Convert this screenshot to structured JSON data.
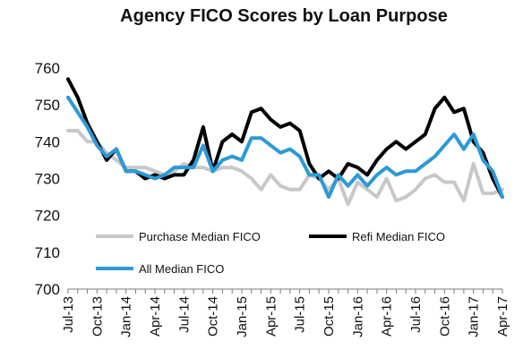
{
  "chart_data": {
    "type": "line",
    "title": "Agency FICO Scores by Loan Purpose",
    "xlabel": "",
    "ylabel": "",
    "ylim": [
      700,
      760
    ],
    "yticks": [
      700,
      710,
      720,
      730,
      740,
      750,
      760
    ],
    "grid": false,
    "legend": "inside-bottom-left",
    "x": [
      "Jul-13",
      "Aug-13",
      "Sep-13",
      "Oct-13",
      "Nov-13",
      "Dec-13",
      "Jan-14",
      "Feb-14",
      "Mar-14",
      "Apr-14",
      "May-14",
      "Jun-14",
      "Jul-14",
      "Aug-14",
      "Sep-14",
      "Oct-14",
      "Nov-14",
      "Dec-14",
      "Jan-15",
      "Feb-15",
      "Mar-15",
      "Apr-15",
      "May-15",
      "Jun-15",
      "Jul-15",
      "Aug-15",
      "Sep-15",
      "Oct-15",
      "Nov-15",
      "Dec-15",
      "Jan-16",
      "Feb-16",
      "Mar-16",
      "Apr-16",
      "May-16",
      "Jun-16",
      "Jul-16",
      "Aug-16",
      "Sep-16",
      "Oct-16",
      "Nov-16",
      "Dec-16",
      "Jan-17",
      "Feb-17",
      "Mar-17",
      "Apr-17"
    ],
    "xtick_labels": [
      "Jul-13",
      "Oct-13",
      "Jan-14",
      "Apr-14",
      "Jul-14",
      "Oct-14",
      "Jan-15",
      "Apr-15",
      "Jul-15",
      "Oct-15",
      "Jan-16",
      "Apr-16",
      "Jul-16",
      "Oct-16",
      "Jan-17",
      "Apr-17"
    ],
    "series": [
      {
        "name": "Purchase Median FICO",
        "color": "#c8c8c8",
        "values": [
          743,
          743,
          740,
          740,
          737,
          735,
          733,
          733,
          733,
          732,
          731,
          732,
          734,
          733,
          733,
          732,
          733,
          733,
          732,
          730,
          727,
          731,
          728,
          727,
          727,
          731,
          730,
          727,
          730,
          723,
          729,
          727,
          725,
          730,
          724,
          725,
          727,
          730,
          731,
          729,
          729,
          724,
          734,
          726,
          726,
          727
        ]
      },
      {
        "name": "Refi Median FICO",
        "color": "#000000",
        "values": [
          757,
          752,
          745,
          740,
          735,
          738,
          732,
          732,
          730,
          731,
          730,
          731,
          731,
          735,
          744,
          732,
          740,
          742,
          740,
          748,
          749,
          746,
          744,
          745,
          743,
          734,
          730,
          732,
          730,
          734,
          733,
          731,
          735,
          738,
          740,
          738,
          740,
          742,
          749,
          752,
          748,
          749,
          740,
          737,
          730,
          725
        ]
      },
      {
        "name": "All Median FICO",
        "color": "#2b9ad6",
        "values": [
          752,
          748,
          744,
          739,
          736,
          738,
          732,
          732,
          731,
          730,
          731,
          733,
          733,
          733,
          739,
          732,
          735,
          736,
          735,
          741,
          741,
          739,
          737,
          738,
          736,
          731,
          731,
          725,
          731,
          728,
          731,
          728,
          731,
          733,
          731,
          732,
          732,
          734,
          736,
          739,
          742,
          738,
          742,
          735,
          732,
          725
        ]
      }
    ],
    "legend_labels": [
      "Purchase Median FICO",
      "Refi Median FICO",
      "All Median FICO"
    ]
  }
}
